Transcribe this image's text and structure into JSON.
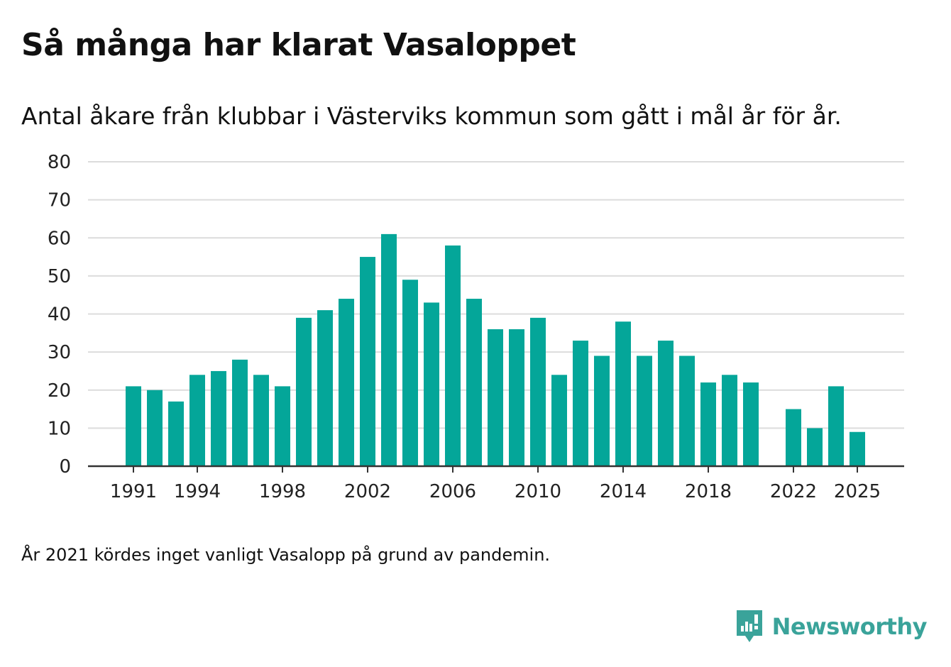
{
  "title": "Så många har klarat Vasaloppet",
  "subtitle": "Antal åkare från klubbar i Västerviks kommun som gått i mål år för år.",
  "note": "År 2021 kördes inget vanligt Vasalopp på grund av pandemin.",
  "brand": {
    "name": "Newsworthy",
    "icon": "newsworthy-logo-icon"
  },
  "colors": {
    "bar": "#04a699",
    "grid": "#dcdcdc",
    "axis": "#333333",
    "text": "#222222",
    "brand": "#3aa39a"
  },
  "chart_data": {
    "type": "bar",
    "title": "Så många har klarat Vasaloppet",
    "xlabel": "",
    "ylabel": "",
    "ylim": [
      0,
      80
    ],
    "yticks": [
      0,
      10,
      20,
      30,
      40,
      50,
      60,
      70,
      80
    ],
    "xticks": [
      1991,
      1994,
      1998,
      2002,
      2006,
      2010,
      2014,
      2018,
      2022,
      2025
    ],
    "grid": true,
    "categories": [
      1991,
      1992,
      1993,
      1994,
      1995,
      1996,
      1997,
      1998,
      1999,
      2000,
      2001,
      2002,
      2003,
      2004,
      2005,
      2006,
      2007,
      2008,
      2009,
      2010,
      2011,
      2012,
      2013,
      2014,
      2015,
      2016,
      2017,
      2018,
      2019,
      2020,
      2021,
      2022,
      2023,
      2024,
      2025
    ],
    "values": [
      21,
      20,
      17,
      24,
      25,
      28,
      24,
      21,
      39,
      41,
      44,
      55,
      61,
      49,
      43,
      58,
      44,
      36,
      36,
      39,
      24,
      33,
      29,
      38,
      29,
      33,
      29,
      22,
      24,
      22,
      null,
      15,
      10,
      21,
      9
    ]
  }
}
